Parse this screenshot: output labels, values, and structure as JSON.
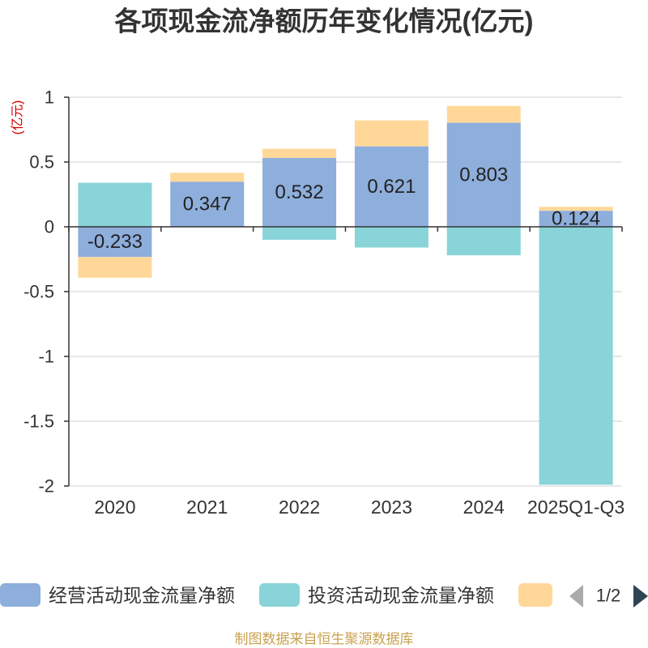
{
  "chart_data": {
    "type": "bar",
    "stacked": true,
    "title": "各项现金流净额历年变化情况(亿元)",
    "ylabel": "(亿元)",
    "ylim": [
      -2,
      1
    ],
    "yticks": [
      1,
      0.5,
      0,
      -0.5,
      -1,
      -1.5,
      -2
    ],
    "grid": true,
    "categories": [
      "2020",
      "2021",
      "2022",
      "2023",
      "2024",
      "2025Q1-Q3"
    ],
    "series": [
      {
        "name": "经营活动现金流量净额",
        "color": "#8eaedc",
        "data_labels": true,
        "values": [
          -0.233,
          0.347,
          0.532,
          0.621,
          0.803,
          0.124
        ]
      },
      {
        "name": "投资活动现金流量净额",
        "color": "#88d4d8",
        "values": [
          0.34,
          0,
          -0.1,
          -0.16,
          -0.22,
          -1.99
        ]
      },
      {
        "color": "#ffd899",
        "values": [
          -0.16,
          0.07,
          0.07,
          0.2,
          0.13,
          0.03
        ]
      }
    ]
  },
  "legend": {
    "page_indicator": "1/2",
    "prev_icon": "triangle-left-icon",
    "next_icon": "triangle-right-icon",
    "prev_color": "#aaaaaa",
    "next_color": "#2f4554"
  },
  "footer": {
    "source": "制图数据来自恒生聚源数据库",
    "color": "#c9a24f"
  }
}
